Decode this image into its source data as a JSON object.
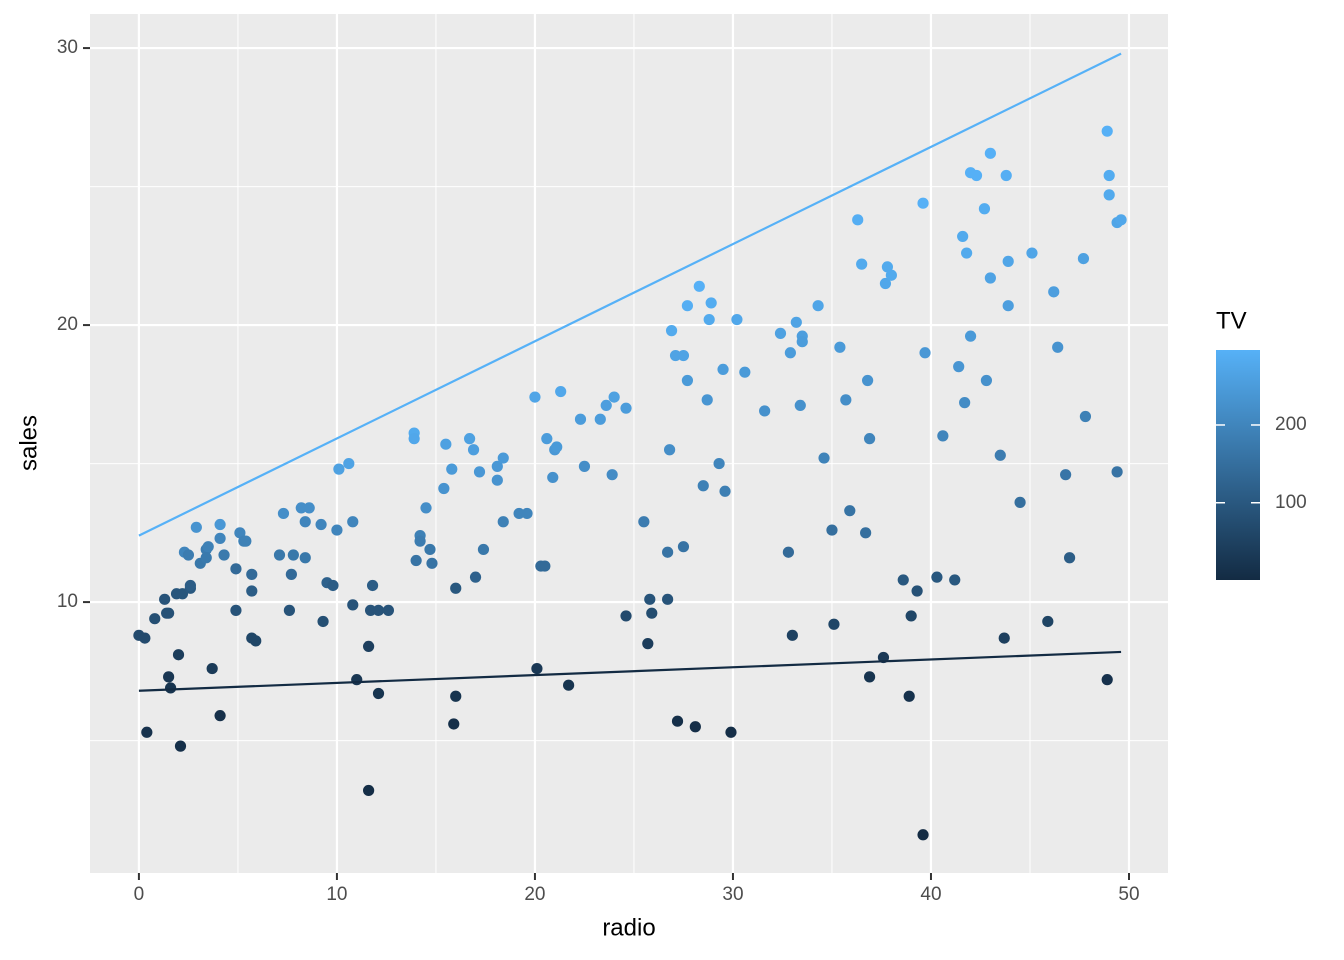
{
  "chart_data": {
    "type": "scatter",
    "x_label": "radio",
    "y_label": "sales",
    "legend_title": "TV",
    "xlim": [
      -2.47,
      51.97
    ],
    "ylim": [
      0.22,
      31.23
    ],
    "xticks": [
      0,
      10,
      20,
      30,
      40,
      50
    ],
    "yticks": [
      10,
      20,
      30
    ],
    "grid": true,
    "minor_grid": true,
    "color_low": "#132B43",
    "color_high": "#56B1F7",
    "colorlim": [
      0.7,
      296.4
    ],
    "colorticks": [
      100,
      200
    ],
    "x": [
      0.0,
      0.3,
      0.4,
      0.8,
      1.3,
      1.4,
      1.5,
      1.5,
      1.6,
      1.9,
      2.0,
      2.1,
      2.2,
      2.3,
      2.5,
      2.6,
      2.6,
      2.9,
      3.1,
      3.4,
      3.5,
      3.4,
      3.7,
      4.1,
      4.1,
      4.1,
      4.3,
      4.9,
      4.9,
      5.1,
      5.3,
      5.4,
      5.7,
      5.7,
      5.7,
      5.9,
      7.1,
      7.3,
      7.6,
      7.7,
      7.8,
      8.2,
      8.4,
      8.4,
      8.6,
      9.2,
      9.3,
      9.5,
      9.8,
      10.0,
      10.1,
      10.6,
      10.8,
      10.8,
      11.0,
      11.6,
      11.6,
      11.7,
      11.8,
      12.1,
      12.1,
      12.6,
      13.9,
      13.9,
      14.0,
      14.2,
      14.2,
      14.5,
      14.7,
      14.8,
      15.4,
      15.5,
      15.8,
      16.0,
      15.9,
      16.0,
      16.7,
      16.9,
      17.0,
      17.2,
      17.4,
      18.1,
      18.1,
      18.4,
      18.4,
      19.2,
      19.6,
      20.0,
      20.1,
      20.3,
      20.5,
      20.6,
      20.9,
      21.0,
      21.1,
      21.3,
      21.7,
      22.3,
      22.5,
      23.3,
      23.6,
      23.9,
      24.0,
      24.6,
      24.6,
      25.5,
      25.7,
      25.8,
      25.9,
      26.7,
      26.7,
      26.8,
      26.9,
      27.1,
      27.2,
      27.5,
      27.5,
      27.7,
      27.7,
      28.1,
      28.3,
      28.5,
      28.7,
      28.8,
      28.9,
      29.3,
      29.5,
      29.6,
      29.9,
      30.2,
      30.6,
      31.6,
      32.4,
      32.8,
      32.9,
      33.0,
      33.2,
      33.4,
      33.5,
      33.5,
      34.3,
      34.6,
      35.0,
      35.1,
      35.4,
      35.7,
      35.9,
      36.3,
      36.5,
      36.7,
      36.8,
      36.9,
      36.9,
      37.6,
      37.7,
      37.8,
      38.0,
      38.6,
      38.9,
      39.0,
      39.3,
      39.6,
      39.6,
      39.7,
      40.3,
      40.6,
      41.2,
      41.4,
      41.6,
      41.7,
      41.8,
      42.0,
      42.0,
      42.3,
      42.7,
      42.8,
      43.0,
      43.0,
      43.5,
      43.7,
      43.8,
      43.9,
      43.9,
      44.5,
      45.1,
      45.9,
      46.2,
      46.4,
      46.8,
      47.0,
      47.7,
      47.8,
      48.9,
      48.9,
      49.0,
      49.0,
      49.4,
      49.4,
      49.6
    ],
    "y": [
      8.8,
      8.7,
      5.3,
      9.4,
      10.1,
      9.6,
      9.6,
      7.3,
      6.9,
      10.3,
      8.1,
      4.8,
      10.3,
      11.8,
      11.7,
      10.5,
      10.6,
      12.7,
      11.4,
      11.9,
      12.0,
      11.6,
      7.6,
      5.9,
      12.8,
      12.3,
      11.7,
      11.2,
      9.7,
      12.5,
      12.2,
      12.2,
      11.0,
      10.4,
      8.7,
      8.6,
      11.7,
      13.2,
      9.7,
      11.0,
      11.7,
      13.4,
      12.9,
      11.6,
      13.4,
      12.8,
      9.3,
      10.7,
      10.6,
      12.6,
      14.8,
      15.0,
      12.9,
      9.9,
      7.2,
      8.4,
      3.2,
      9.7,
      10.6,
      9.7,
      6.7,
      9.7,
      16.1,
      15.9,
      11.5,
      12.4,
      12.2,
      13.4,
      11.9,
      11.4,
      14.1,
      15.7,
      14.8,
      10.5,
      5.6,
      6.6,
      15.9,
      15.5,
      10.9,
      14.7,
      11.9,
      14.9,
      14.4,
      15.2,
      12.9,
      13.2,
      13.2,
      17.4,
      7.6,
      11.3,
      11.3,
      15.9,
      14.5,
      15.5,
      15.6,
      17.6,
      7.0,
      16.6,
      14.9,
      16.6,
      17.1,
      14.6,
      17.4,
      17.0,
      9.5,
      12.9,
      8.5,
      10.1,
      9.6,
      10.1,
      11.8,
      15.5,
      19.8,
      18.9,
      5.7,
      18.9,
      12.0,
      18.0,
      20.7,
      5.5,
      21.4,
      14.2,
      17.3,
      20.2,
      20.8,
      15.0,
      18.4,
      14.0,
      5.3,
      20.2,
      18.3,
      16.9,
      19.7,
      11.8,
      19.0,
      8.8,
      20.1,
      17.1,
      19.6,
      19.4,
      20.7,
      15.2,
      12.6,
      9.2,
      19.2,
      17.3,
      13.3,
      23.8,
      22.2,
      12.5,
      18.0,
      7.3,
      15.9,
      8.0,
      21.5,
      22.1,
      21.8,
      10.8,
      6.6,
      9.5,
      10.4,
      1.6,
      24.4,
      19.0,
      10.9,
      16.0,
      10.8,
      18.5,
      23.2,
      17.2,
      22.6,
      25.5,
      19.6,
      25.4,
      24.2,
      18.0,
      26.2,
      21.7,
      15.3,
      8.7,
      25.4,
      22.3,
      20.7,
      13.6,
      22.6,
      9.3,
      21.2,
      19.2,
      14.6,
      11.6,
      22.4,
      16.7,
      7.2,
      27.0,
      25.4,
      24.7,
      14.7,
      23.7,
      23.8
    ],
    "tv": [
      70,
      70,
      15,
      80,
      90,
      85,
      85,
      25,
      20,
      95,
      40,
      10,
      95,
      200,
      180,
      100,
      110,
      230,
      170,
      180,
      190,
      175,
      35,
      12,
      240,
      200,
      175,
      140,
      90,
      200,
      190,
      190,
      140,
      110,
      60,
      60,
      170,
      220,
      90,
      140,
      170,
      220,
      200,
      170,
      220,
      200,
      80,
      120,
      110,
      200,
      260,
      265,
      200,
      90,
      25,
      45,
      5,
      90,
      110,
      90,
      20,
      90,
      280,
      275,
      160,
      190,
      180,
      220,
      170,
      160,
      230,
      260,
      245,
      100,
      10,
      20,
      260,
      255,
      120,
      240,
      170,
      240,
      230,
      245,
      190,
      200,
      200,
      270,
      30,
      140,
      140,
      250,
      225,
      240,
      245,
      275,
      20,
      250,
      220,
      250,
      255,
      215,
      260,
      250,
      70,
      180,
      40,
      90,
      75,
      90,
      160,
      220,
      280,
      265,
      10,
      265,
      160,
      245,
      290,
      8,
      295,
      190,
      235,
      280,
      285,
      200,
      250,
      185,
      8,
      275,
      245,
      225,
      260,
      140,
      250,
      50,
      265,
      225,
      255,
      250,
      270,
      195,
      150,
      60,
      245,
      220,
      160,
      290,
      280,
      150,
      230,
      20,
      200,
      30,
      275,
      280,
      280,
      100,
      15,
      60,
      85,
      1,
      295,
      240,
      100,
      200,
      100,
      235,
      280,
      215,
      280,
      295,
      245,
      295,
      285,
      225,
      295,
      265,
      180,
      45,
      290,
      270,
      255,
      150,
      270,
      55,
      255,
      230,
      165,
      110,
      260,
      190,
      15,
      295,
      285,
      280,
      160,
      270,
      275
    ],
    "lines": [
      {
        "x": [
          0,
          49.6
        ],
        "y": [
          12.4,
          29.8
        ],
        "color": "#56B1F7"
      },
      {
        "x": [
          0,
          49.6
        ],
        "y": [
          6.8,
          8.2
        ],
        "color": "#132B43"
      }
    ]
  }
}
